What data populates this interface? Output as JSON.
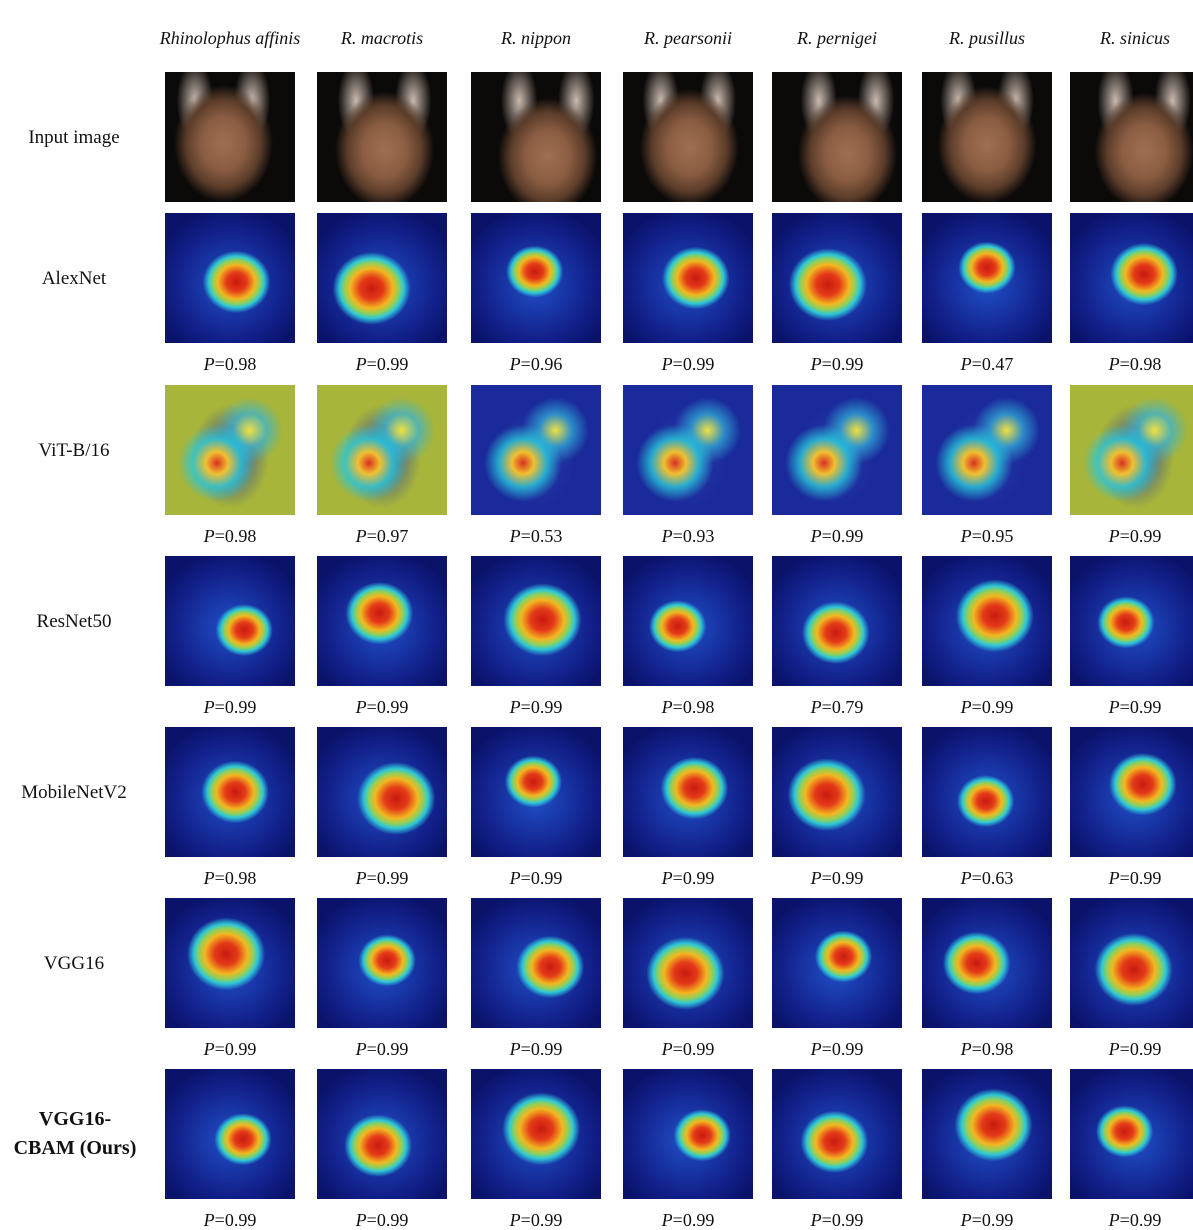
{
  "columns": [
    "Rhinolophus affinis",
    "R. macrotis",
    "R. nippon",
    "R. pearsonii",
    "R. pernigei",
    "R. pusillus",
    "R. sinicus"
  ],
  "rows": [
    {
      "label": "Input image"
    },
    {
      "label": "AlexNet",
      "scores": [
        "P=0.98",
        "P=0.99",
        "P=0.96",
        "P=0.99",
        "P=0.99",
        "P=0.47",
        "P=0.98"
      ]
    },
    {
      "label": "ViT-B/16",
      "scores": [
        "P=0.98",
        "P=0.97",
        "P=0.53",
        "P=0.93",
        "P=0.99",
        "P=0.95",
        "P=0.99"
      ]
    },
    {
      "label": "ResNet50",
      "scores": [
        "P=0.99",
        "P=0.99",
        "P=0.99",
        "P=0.98",
        "P=0.79",
        "P=0.99",
        "P=0.99"
      ]
    },
    {
      "label": "MobileNetV2",
      "scores": [
        "P=0.98",
        "P=0.99",
        "P=0.99",
        "P=0.99",
        "P=0.99",
        "P=0.63",
        "P=0.99"
      ]
    },
    {
      "label": "VGG16",
      "scores": [
        "P=0.99",
        "P=0.99",
        "P=0.99",
        "P=0.99",
        "P=0.99",
        "P=0.98",
        "P=0.99"
      ]
    },
    {
      "label": "VGG16-CBAM (Ours)",
      "scores": [
        "P=0.99",
        "P=0.99",
        "P=0.99",
        "P=0.99",
        "P=0.99",
        "P=0.99",
        "P=0.99"
      ]
    }
  ]
}
